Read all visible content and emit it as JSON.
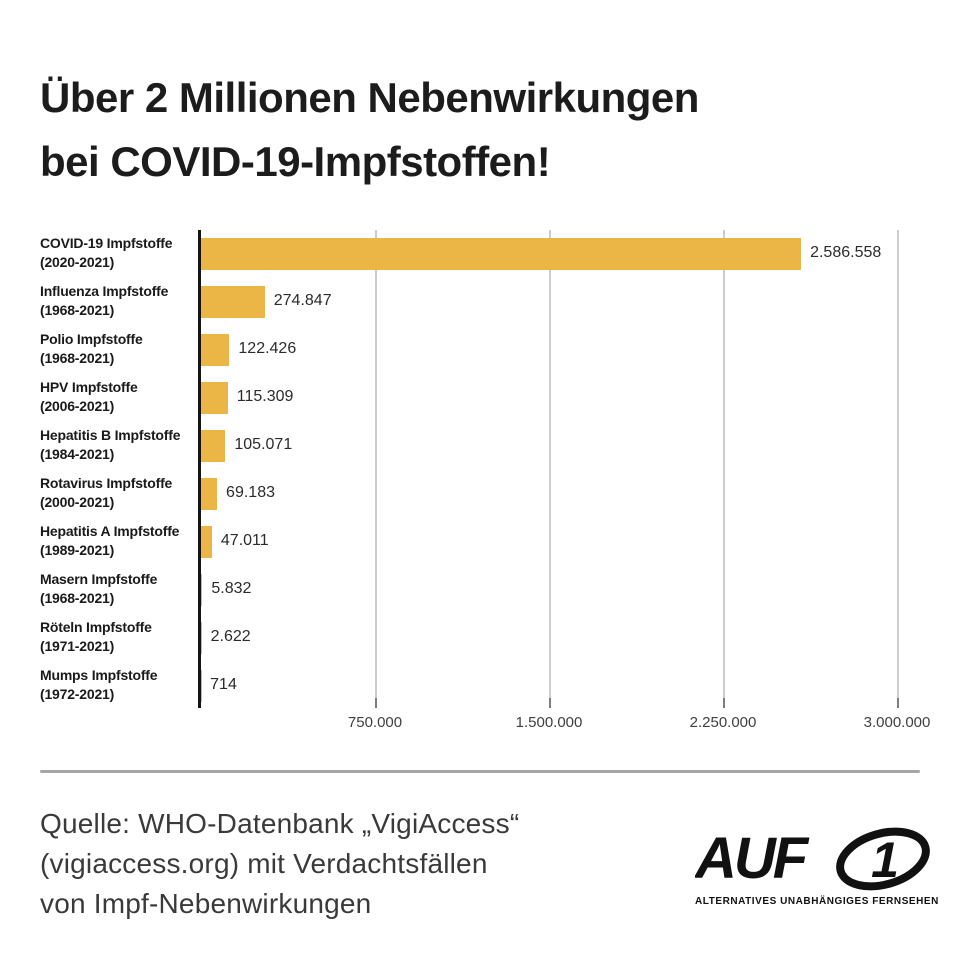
{
  "title": {
    "lines": [
      "Über 2 Millionen Nebenwirkungen",
      "bei COVID-19-Impfstoffen!"
    ]
  },
  "chart_data": {
    "type": "bar",
    "orientation": "horizontal",
    "title": "Über 2 Millionen Nebenwirkungen bei COVID-19-Impfstoffen!",
    "categories": [
      "COVID-19 Impfstoffe (2020-2021)",
      "Influenza Impfstoffe (1968-2021)",
      "Polio Impfstoffe (1968-2021)",
      "HPV Impfstoffe (2006-2021)",
      "Hepatitis B Impfstoffe (1984-2021)",
      "Rotavirus Impfstoffe (2000-2021)",
      "Hepatitis A Impfstoffe (1989-2021)",
      "Masern Impfstoffe (1968-2021)",
      "Röteln Impfstoffe (1971-2021)",
      "Mumps Impfstoffe (1972-2021)"
    ],
    "values": [
      2586558,
      274847,
      122426,
      115309,
      105071,
      69183,
      47011,
      5832,
      2622,
      714
    ],
    "rows": [
      {
        "name": "COVID-19 Impfstoffe",
        "years": "(2020-2021)",
        "value": 2586558,
        "display": "2.586.558"
      },
      {
        "name": "Influenza Impfstoffe",
        "years": "(1968-2021)",
        "value": 274847,
        "display": "274.847"
      },
      {
        "name": "Polio Impfstoffe",
        "years": "(1968-2021)",
        "value": 122426,
        "display": "122.426"
      },
      {
        "name": "HPV Impfstoffe",
        "years": "(2006-2021)",
        "value": 115309,
        "display": "115.309"
      },
      {
        "name": "Hepatitis B Impfstoffe",
        "years": "(1984-2021)",
        "value": 105071,
        "display": "105.071"
      },
      {
        "name": "Rotavirus Impfstoffe",
        "years": "(2000-2021)",
        "value": 69183,
        "display": "69.183"
      },
      {
        "name": "Hepatitis A Impfstoffe",
        "years": "(1989-2021)",
        "value": 47011,
        "display": "47.011"
      },
      {
        "name": "Masern Impfstoffe",
        "years": "(1968-2021)",
        "value": 5832,
        "display": "5.832"
      },
      {
        "name": "Röteln Impfstoffe",
        "years": "(1971-2021)",
        "value": 2622,
        "display": "2.622"
      },
      {
        "name": "Mumps Impfstoffe",
        "years": "(1972-2021)",
        "value": 714,
        "display": "714"
      }
    ],
    "xlim": [
      0,
      3000000
    ],
    "x_ticks": [
      {
        "value": 750000,
        "label": "750.000"
      },
      {
        "value": 1500000,
        "label": "1.500.000"
      },
      {
        "value": 2250000,
        "label": "2.250.000"
      },
      {
        "value": 3000000,
        "label": "3.000.000"
      }
    ],
    "grid": "vertical",
    "legend_position": "none",
    "bar_color": "#ECB647"
  },
  "footer": {
    "source_lines": [
      "Quelle: WHO-Datenbank „VigiAccess“",
      "(vigiaccess.org) mit Verdachtsfällen",
      "von Impf-Nebenwirkungen"
    ],
    "logo": {
      "wordmark": "AUF",
      "digit": "1",
      "tagline": "ALTERNATIVES UNABHÄNGIGES FERNSEHEN"
    }
  },
  "colors": {
    "bar": "#ECB647",
    "title_text": "#1c1c1c",
    "axis_line": "#141414",
    "gridline": "#cccccc",
    "value_text": "#2b2b2b",
    "tick_text": "#3f3f3f",
    "divider": "#a6a6a6",
    "source_text": "#3a3a3a",
    "logo": "#111111",
    "background": "#ffffff"
  }
}
